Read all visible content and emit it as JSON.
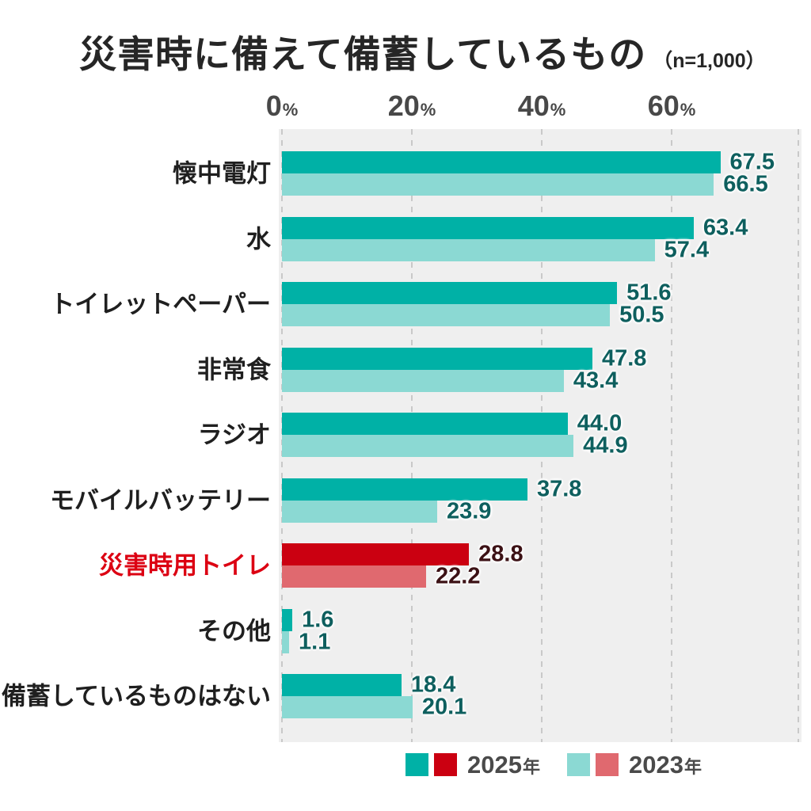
{
  "title": {
    "text": "災害時に備えて備蓄しているもの",
    "note": "（n=1,000）"
  },
  "axis": {
    "ticks": [
      "0",
      "20",
      "40",
      "60"
    ],
    "percent": "%"
  },
  "legend": [
    {
      "year": "2025",
      "suffix": "年"
    },
    {
      "year": "2023",
      "suffix": "年"
    }
  ],
  "colors": {
    "teal_2025": "#00b1a6",
    "teal_2023": "#8bd9d3",
    "red_2025": "#cb0011",
    "red_2023": "#e0696f",
    "value_text_teal": "#0e5f5e",
    "value_text_red": "#3c1115",
    "category_text": "#1f1f1f",
    "category_text_highlight": "#dc0012",
    "axis_text": "#484848",
    "legend_text": "#4a4a4a",
    "plot_background": "#efefef",
    "gridline": "#c9c9c9",
    "title_text": "#262626"
  },
  "chart_data": {
    "type": "bar",
    "orientation": "horizontal",
    "title": "災害時に備えて備蓄しているもの（n=1,000）",
    "sample_note": "n=1,000",
    "categories": [
      "懐中電灯",
      "水",
      "トイレットペーパー",
      "非常食",
      "ラジオ",
      "モバイルバッテリー",
      "災害時用トイレ",
      "その他",
      "備蓄しているものはない"
    ],
    "series": [
      {
        "name": "2025年",
        "values": [
          67.5,
          63.4,
          51.6,
          47.8,
          44.0,
          37.8,
          28.8,
          1.6,
          18.4
        ]
      },
      {
        "name": "2023年",
        "values": [
          66.5,
          57.4,
          50.5,
          43.4,
          44.9,
          23.9,
          22.2,
          1.1,
          20.1
        ]
      }
    ],
    "value_labels": [
      [
        "67.5",
        "63.4",
        "51.6",
        "47.8",
        "44.0",
        "37.8",
        "28.8",
        "1.6",
        "18.4"
      ],
      [
        "66.5",
        "57.4",
        "50.5",
        "43.4",
        "44.9",
        "23.9",
        "22.2",
        "1.1",
        "20.1"
      ]
    ],
    "highlight_category": "災害時用トイレ",
    "highlight_index": 6,
    "xlim": [
      0,
      80
    ],
    "gridlines_pct": [
      0,
      20,
      40,
      60,
      80
    ],
    "axis_tick_labels": [
      "0%",
      "20%",
      "40%",
      "60%"
    ],
    "grid": "dashed",
    "legend_position": "bottom"
  }
}
